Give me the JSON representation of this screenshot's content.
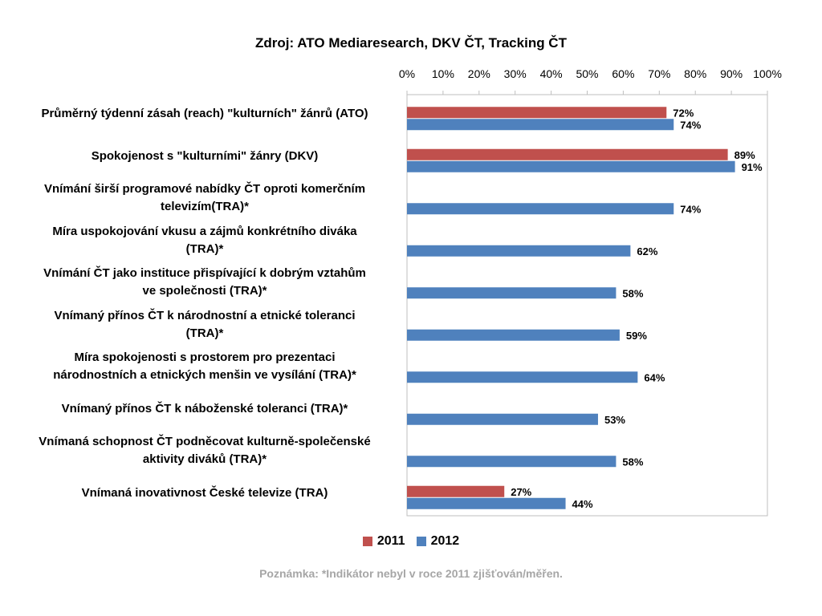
{
  "chart_data": {
    "type": "bar",
    "orientation": "horizontal",
    "title": "Zdroj: ATO Mediaresearch, DKV ČT, Tracking ČT",
    "xlim": [
      0,
      100
    ],
    "x_ticks": [
      "0%",
      "10%",
      "20%",
      "30%",
      "40%",
      "50%",
      "60%",
      "70%",
      "80%",
      "90%",
      "100%"
    ],
    "grid": false,
    "legend_position": "bottom",
    "categories": [
      [
        "Průměrný týdenní zásah (reach) \"kulturních\" žánrů (ATO)"
      ],
      [
        "Spokojenost s \"kulturními\" žánry (DKV)"
      ],
      [
        "Vnímání širší programové nabídky ČT oproti komerčním",
        "televizím(TRA)*"
      ],
      [
        "Míra uspokojování vkusu a zájmů konkrétního diváka",
        "(TRA)*"
      ],
      [
        "Vnímání ČT jako instituce přispívající k dobrým vztahům",
        "ve společnosti (TRA)*"
      ],
      [
        "Vnímaný přínos ČT k národnostní a etnické toleranci",
        "(TRA)*"
      ],
      [
        "Míra spokojenosti s prostorem pro prezentaci",
        "národnostních a etnických menšin ve vysílání (TRA)*"
      ],
      [
        "Vnímaný přínos ČT k náboženské toleranci (TRA)*"
      ],
      [
        "Vnímaná schopnost ČT podněcovat kulturně-společenské",
        "aktivity diváků (TRA)*"
      ],
      [
        "Vnímaná inovativnost České televize (TRA)"
      ]
    ],
    "series": [
      {
        "name": "2011",
        "color": "#c0504d",
        "values": [
          72,
          89,
          null,
          null,
          null,
          null,
          null,
          null,
          null,
          27
        ],
        "labels": [
          "72%",
          "89%",
          null,
          null,
          null,
          null,
          null,
          null,
          null,
          "27%"
        ]
      },
      {
        "name": "2012",
        "color": "#4f81bd",
        "values": [
          74,
          91,
          74,
          62,
          58,
          59,
          64,
          53,
          58,
          44
        ],
        "labels": [
          "74%",
          "91%",
          "74%",
          "62%",
          "58%",
          "59%",
          "64%",
          "53%",
          "58%",
          "44%"
        ]
      }
    ]
  },
  "note": "Poznámka: *Indikátor nebyl v roce 2011 zjišťován/měřen."
}
